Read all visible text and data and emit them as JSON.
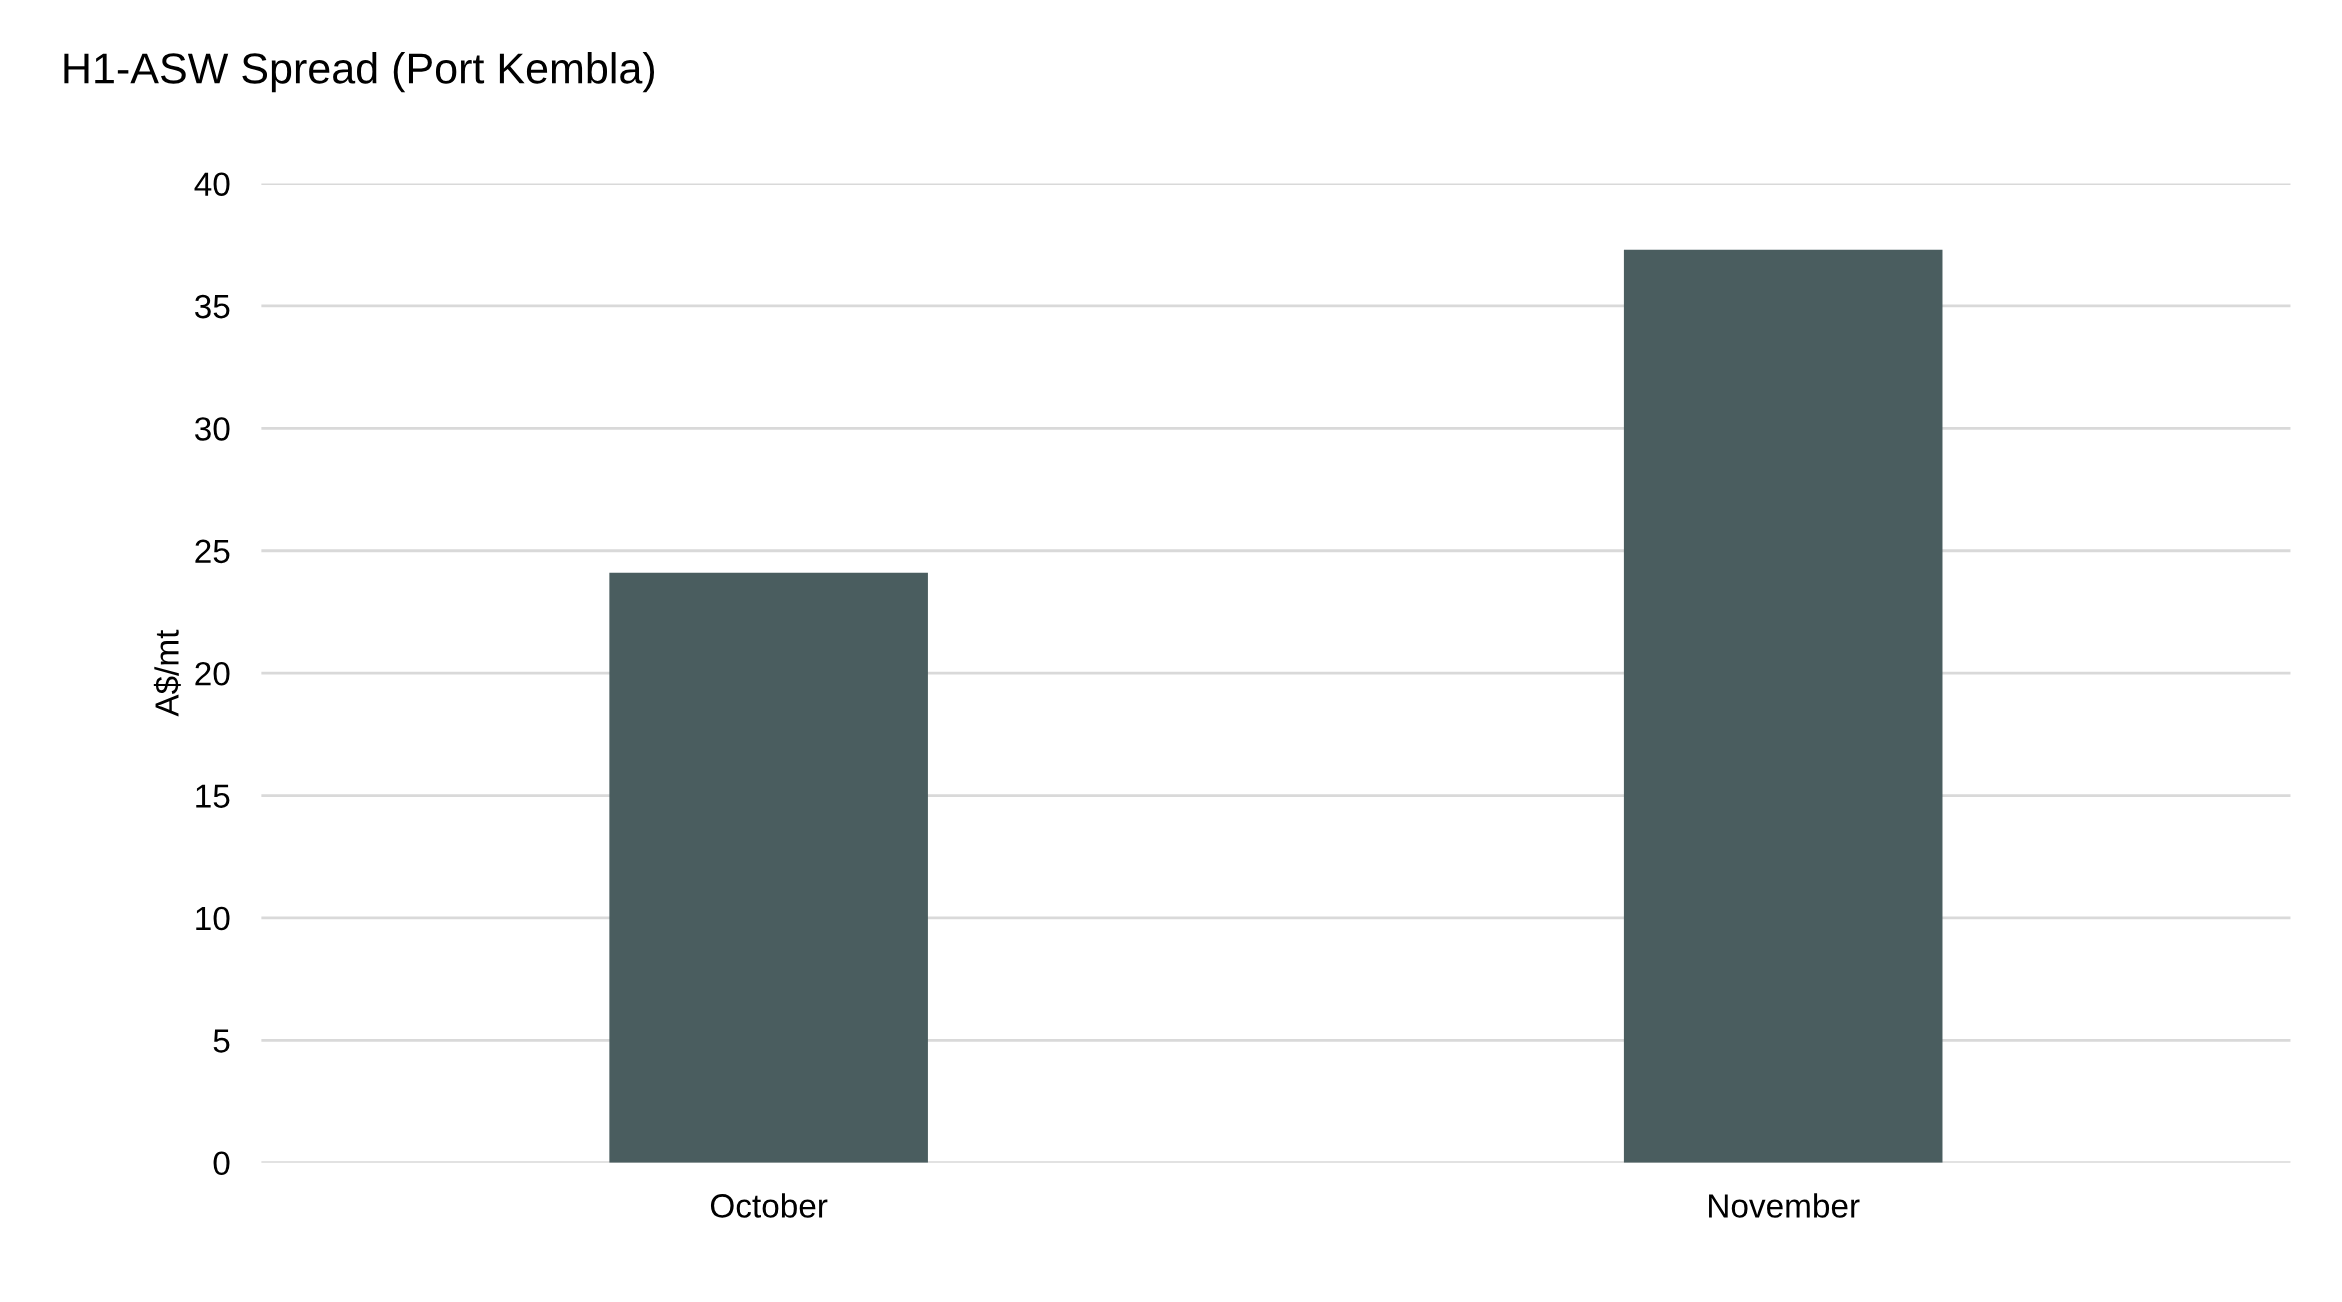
{
  "chart_data": {
    "type": "bar",
    "title": "H1-ASW Spread (Port Kembla)",
    "ylabel": "A$/mt",
    "categories": [
      "October",
      "November"
    ],
    "values": [
      24.1,
      37.3
    ],
    "color": "#4a5d5f",
    "ylim": [
      0,
      40
    ],
    "yticks": [
      0,
      5,
      10,
      15,
      20,
      25,
      30,
      35,
      40
    ],
    "grid": "y",
    "legend": false
  }
}
